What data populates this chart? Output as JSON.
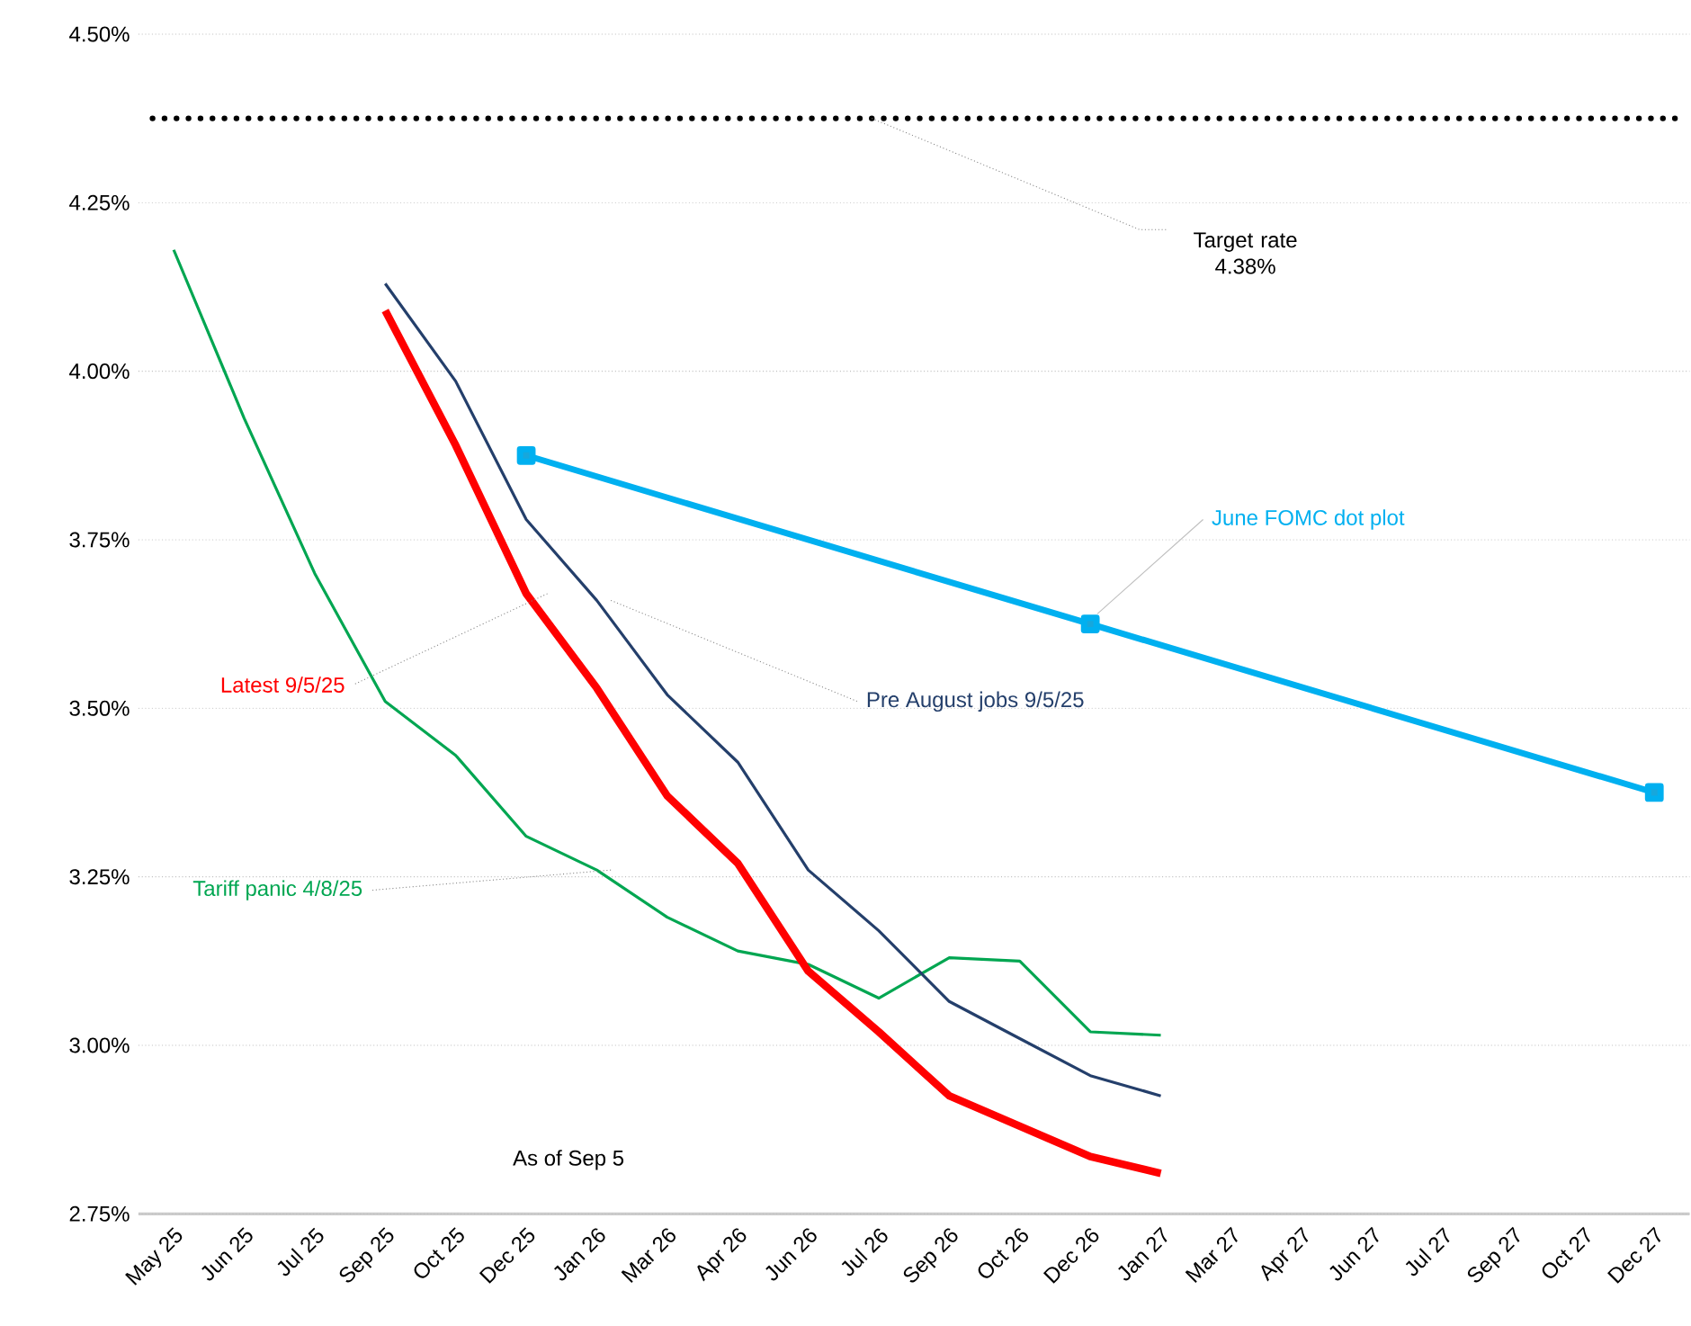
{
  "chart_data": {
    "type": "line",
    "categories": [
      "May 25",
      "Jun 25",
      "Jul 25",
      "Sep 25",
      "Oct 25",
      "Dec 25",
      "Jan 26",
      "Mar 26",
      "Apr 26",
      "Jun 26",
      "Jul 26",
      "Sep 26",
      "Oct 26",
      "Dec 26",
      "Jan 27",
      "Mar 27",
      "Apr 27",
      "Jun 27",
      "Jul 27",
      "Sep 27",
      "Oct 27",
      "Dec 27"
    ],
    "ylim": [
      2.75,
      4.5
    ],
    "yticks": [
      {
        "value": 2.75,
        "label": "2.75%"
      },
      {
        "value": 3.0,
        "label": "3.00%"
      },
      {
        "value": 3.25,
        "label": "3.25%"
      },
      {
        "value": 3.5,
        "label": "3.50%"
      },
      {
        "value": 3.75,
        "label": "3.75%"
      },
      {
        "value": 4.0,
        "label": "4.00%"
      },
      {
        "value": 4.25,
        "label": "4.25%"
      },
      {
        "value": 4.5,
        "label": "4.50%"
      }
    ],
    "grid": "y",
    "series": [
      {
        "name": "Tariff panic 4/8/25",
        "color": "#00a651",
        "values": [
          4.18,
          3.93,
          3.7,
          3.51,
          3.43,
          3.31,
          3.26,
          3.19,
          3.14,
          3.12,
          3.07,
          3.13,
          3.125,
          3.02,
          3.015,
          null,
          null,
          null,
          null,
          null,
          null,
          null
        ]
      },
      {
        "name": "Pre August jobs 9/5/25",
        "color": "#243f6b",
        "values": [
          null,
          null,
          null,
          4.13,
          3.985,
          3.78,
          3.66,
          3.52,
          3.42,
          3.26,
          3.17,
          3.065,
          3.01,
          2.955,
          2.925,
          null,
          null,
          null,
          null,
          null,
          null,
          null
        ]
      },
      {
        "name": "Latest 9/5/25",
        "color": "#ff0000",
        "values": [
          null,
          null,
          null,
          4.09,
          3.89,
          3.67,
          3.53,
          3.37,
          3.27,
          3.11,
          3.02,
          2.925,
          2.88,
          2.835,
          2.81,
          null,
          null,
          null,
          null,
          null,
          null,
          null
        ]
      },
      {
        "name": "June FOMC dot plot",
        "color": "#00b0f0",
        "marker": "square",
        "values": [
          null,
          null,
          null,
          null,
          null,
          3.875,
          null,
          null,
          null,
          null,
          null,
          null,
          null,
          3.625,
          null,
          null,
          null,
          null,
          null,
          null,
          null,
          3.375
        ]
      }
    ],
    "ref_lines": [
      {
        "axis": "y",
        "value": 4.375,
        "label": "Target rate 4.38%",
        "color": "#000000",
        "line_style": "dotted"
      }
    ],
    "annotations": [
      "As of Sep 5"
    ]
  }
}
